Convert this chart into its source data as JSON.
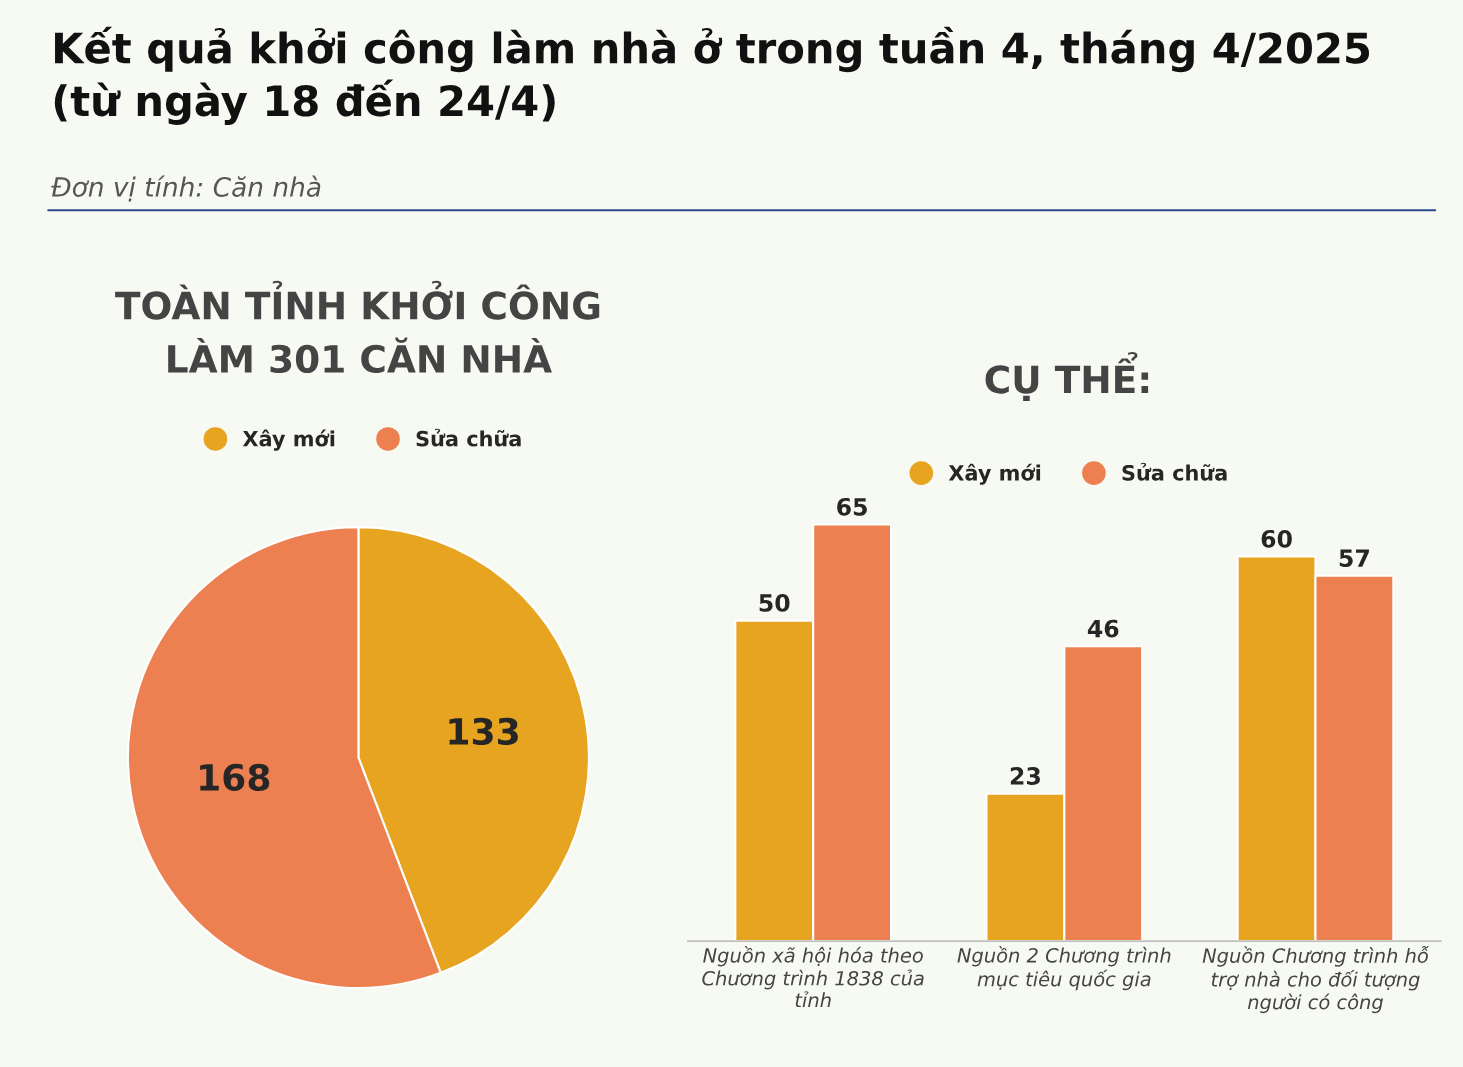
{
  "chart_data": [
    {
      "type": "pie",
      "title": "Kết quả khởi công làm nhà ở trong tuần 4, tháng 4/2025\n(từ ngày 18 đến 24/4)",
      "subtitle": "Đơn vị tính: Căn nhà",
      "annotations": [
        "TOÀN TỈNH KHỞI CÔNG\nLÀM 301 CĂN NHÀ"
      ],
      "categories": [
        "Xây mới",
        "Sửa chữa"
      ],
      "values": [
        133,
        168
      ],
      "colors": [
        "#e6a420",
        "#ed8050"
      ],
      "data_labels": true,
      "legend": "top"
    },
    {
      "type": "bar",
      "title": "CỤ THỂ:",
      "categories": [
        "Nguồn xã hội hóa theo\nChương trình 1838 của\ntỉnh",
        "Nguồn 2 Chương trình\nmục tiêu quốc gia",
        "Nguồn Chương trình hỗ\ntrợ nhà cho đối tượng\nngười có công"
      ],
      "series": [
        {
          "name": "Xây mới",
          "color": "#e6a420",
          "values": [
            50,
            23,
            60
          ]
        },
        {
          "name": "Sửa chữa",
          "color": "#ed8050",
          "values": [
            65,
            46,
            57
          ]
        }
      ],
      "data_labels": true,
      "legend": "top",
      "grid": false,
      "tick_labels": "x"
    }
  ]
}
